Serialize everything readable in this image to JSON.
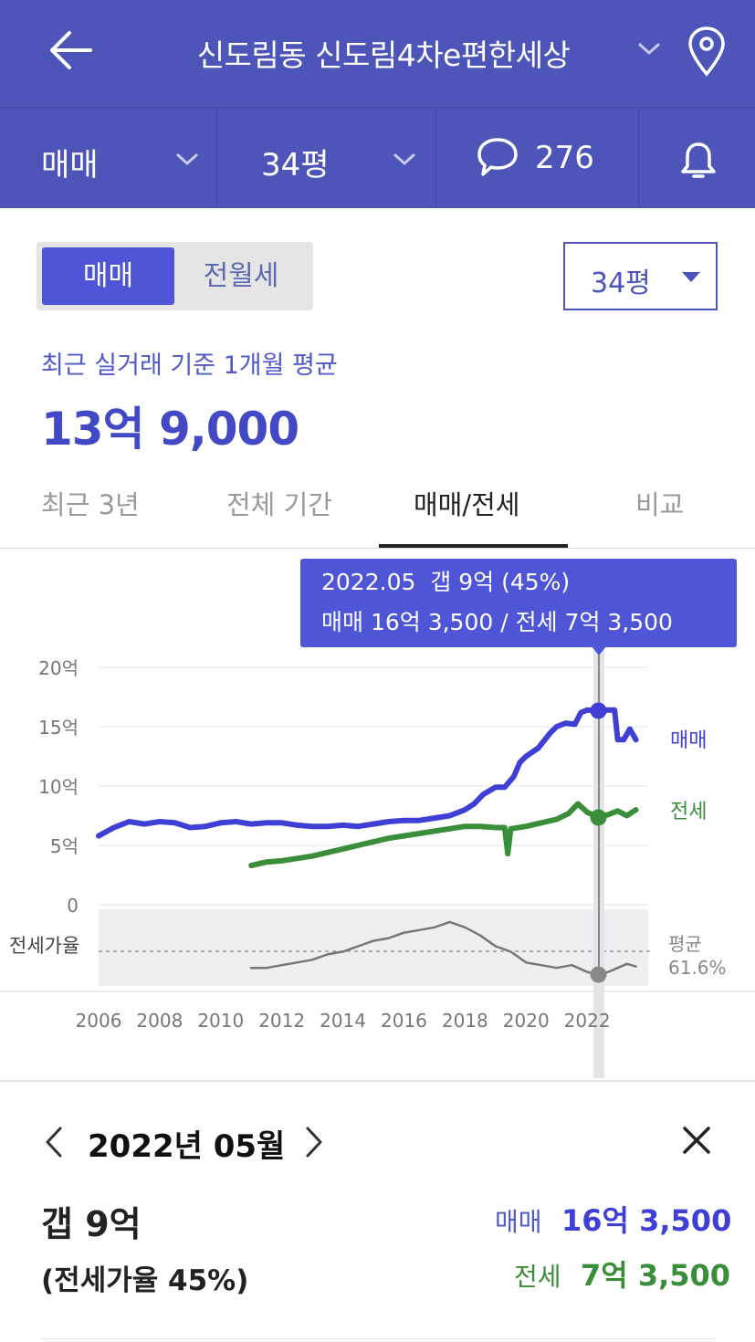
{
  "header": {
    "title": "신도림동 신도림4차e편한세상",
    "trade_filter": "매매",
    "size_filter": "34평",
    "comment_count": "276"
  },
  "toggle": {
    "active": "매매",
    "inactive": "전월세"
  },
  "size_select": "34평",
  "summary": {
    "subtitle": "최근 실거래 기준 1개월 평균",
    "price": "13억 9,000"
  },
  "tabs": [
    {
      "label": "최근 3년"
    },
    {
      "label": "전체 기간"
    },
    {
      "label": "매매/전세"
    },
    {
      "label": "비교"
    }
  ],
  "tooltip": {
    "line1": "2022.05  갭 9억 (45%)",
    "line2": "매매 16억 3,500 / 전세 7억 3,500"
  },
  "chart_data": {
    "type": "line",
    "x_tick_labels": [
      "2006",
      "2008",
      "2010",
      "2012",
      "2014",
      "2016",
      "2018",
      "2020",
      "2022"
    ],
    "y_tick_labels": [
      "20억",
      "15억",
      "10억",
      "5억",
      "0"
    ],
    "ylim": [
      0,
      20
    ],
    "xlim": [
      2006,
      2024
    ],
    "grid": true,
    "selected_x": 2022.37,
    "series": [
      {
        "name": "매매",
        "color": "#3f3fd6",
        "points": [
          [
            2006.0,
            5.8
          ],
          [
            2006.5,
            6.5
          ],
          [
            2007.0,
            7.0
          ],
          [
            2007.5,
            6.8
          ],
          [
            2008.0,
            7.0
          ],
          [
            2008.5,
            6.9
          ],
          [
            2009.0,
            6.5
          ],
          [
            2009.5,
            6.6
          ],
          [
            2010.0,
            6.9
          ],
          [
            2010.5,
            7.0
          ],
          [
            2011.0,
            6.8
          ],
          [
            2011.5,
            6.9
          ],
          [
            2012.0,
            6.9
          ],
          [
            2012.5,
            6.7
          ],
          [
            2013.0,
            6.6
          ],
          [
            2013.5,
            6.6
          ],
          [
            2014.0,
            6.7
          ],
          [
            2014.5,
            6.6
          ],
          [
            2015.0,
            6.8
          ],
          [
            2015.5,
            7.0
          ],
          [
            2016.0,
            7.1
          ],
          [
            2016.5,
            7.1
          ],
          [
            2017.0,
            7.3
          ],
          [
            2017.5,
            7.5
          ],
          [
            2018.0,
            8.0
          ],
          [
            2018.3,
            8.5
          ],
          [
            2018.6,
            9.3
          ],
          [
            2019.0,
            9.9
          ],
          [
            2019.3,
            9.9
          ],
          [
            2019.6,
            10.8
          ],
          [
            2019.8,
            12.0
          ],
          [
            2020.0,
            12.5
          ],
          [
            2020.4,
            13.2
          ],
          [
            2020.8,
            14.5
          ],
          [
            2021.0,
            15.0
          ],
          [
            2021.3,
            15.3
          ],
          [
            2021.6,
            15.2
          ],
          [
            2021.8,
            16.2
          ],
          [
            2022.0,
            16.4
          ],
          [
            2022.37,
            16.35
          ],
          [
            2022.7,
            16.4
          ],
          [
            2022.9,
            16.4
          ],
          [
            2023.0,
            13.9
          ],
          [
            2023.2,
            13.9
          ],
          [
            2023.4,
            14.8
          ],
          [
            2023.6,
            13.9
          ]
        ]
      },
      {
        "name": "전세",
        "color": "#3a8e3a",
        "points": [
          [
            2011.0,
            3.3
          ],
          [
            2011.5,
            3.6
          ],
          [
            2012.0,
            3.7
          ],
          [
            2012.5,
            3.9
          ],
          [
            2013.0,
            4.1
          ],
          [
            2013.5,
            4.4
          ],
          [
            2014.0,
            4.7
          ],
          [
            2014.5,
            5.0
          ],
          [
            2015.0,
            5.3
          ],
          [
            2015.5,
            5.6
          ],
          [
            2016.0,
            5.8
          ],
          [
            2016.5,
            6.0
          ],
          [
            2017.0,
            6.2
          ],
          [
            2017.5,
            6.4
          ],
          [
            2018.0,
            6.6
          ],
          [
            2018.5,
            6.6
          ],
          [
            2019.0,
            6.5
          ],
          [
            2019.3,
            6.5
          ],
          [
            2019.4,
            4.3
          ],
          [
            2019.5,
            6.4
          ],
          [
            2020.0,
            6.6
          ],
          [
            2020.5,
            6.9
          ],
          [
            2021.0,
            7.2
          ],
          [
            2021.4,
            7.7
          ],
          [
            2021.7,
            8.5
          ],
          [
            2022.0,
            7.8
          ],
          [
            2022.37,
            7.35
          ],
          [
            2022.7,
            7.6
          ],
          [
            2023.0,
            7.9
          ],
          [
            2023.3,
            7.5
          ],
          [
            2023.6,
            8.0
          ]
        ]
      },
      {
        "name": "전세가율",
        "color": "#777777",
        "points": [
          [
            2011.0,
            50
          ],
          [
            2011.5,
            50
          ],
          [
            2012.0,
            52
          ],
          [
            2012.5,
            54
          ],
          [
            2013.0,
            56
          ],
          [
            2013.5,
            60
          ],
          [
            2014.0,
            62
          ],
          [
            2014.5,
            66
          ],
          [
            2015.0,
            70
          ],
          [
            2015.5,
            72
          ],
          [
            2016.0,
            76
          ],
          [
            2016.5,
            78
          ],
          [
            2017.0,
            80
          ],
          [
            2017.5,
            84
          ],
          [
            2018.0,
            80
          ],
          [
            2018.5,
            74
          ],
          [
            2019.0,
            66
          ],
          [
            2019.5,
            62
          ],
          [
            2020.0,
            54
          ],
          [
            2020.5,
            52
          ],
          [
            2021.0,
            50
          ],
          [
            2021.5,
            52
          ],
          [
            2022.0,
            47
          ],
          [
            2022.37,
            45
          ],
          [
            2022.7,
            47
          ],
          [
            2023.0,
            50
          ],
          [
            2023.3,
            53
          ],
          [
            2023.6,
            51
          ]
        ]
      }
    ],
    "series_labels": [
      "매매",
      "전세"
    ],
    "ratio_label": "전세가율",
    "avg_label_1": "평균",
    "avg_label_2": "61.6%"
  },
  "detail": {
    "month": "2022년 05월",
    "gap": "갭 9억",
    "ratio": "(전세가율 45%)",
    "sale_label": "매매",
    "sale_value": "16억 3,500",
    "jeonse_label": "전세",
    "jeonse_value": "7억 3,500"
  }
}
